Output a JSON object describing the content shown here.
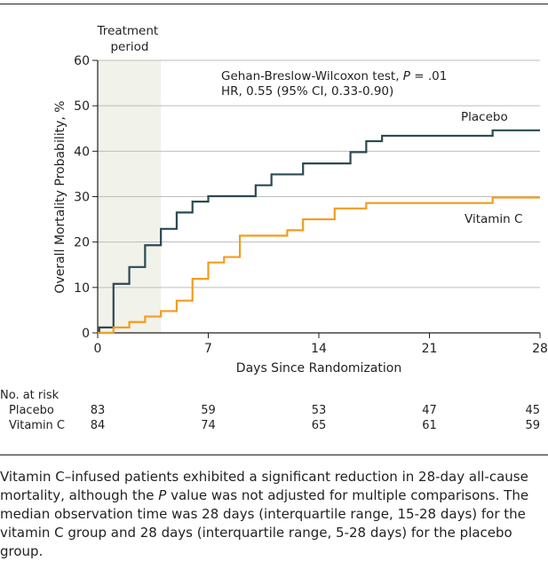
{
  "chart_data": {
    "type": "line",
    "step": true,
    "xlabel": "Days Since Randomization",
    "ylabel": "Overall Mortality Probability, %",
    "xlim": [
      0,
      28
    ],
    "ylim": [
      0,
      60
    ],
    "xticks": [
      0,
      7,
      14,
      21,
      28
    ],
    "yticks": [
      0,
      10,
      20,
      30,
      40,
      50,
      60
    ],
    "grid": "horizontal",
    "shaded_region": {
      "label": "Treatment period",
      "x": [
        0,
        4
      ]
    },
    "annotation": {
      "line1_prefix": "Gehan-Breslow-Wilcoxon test, ",
      "line1_p": "P",
      "line1_suffix": " = .01",
      "line2": "HR, 0.55 (95% CI, 0.33-0.90)"
    },
    "series": [
      {
        "name": "Placebo",
        "color": "#2a4a52",
        "points": [
          [
            0,
            0
          ],
          [
            0.1,
            1.2
          ],
          [
            1,
            10.8
          ],
          [
            2,
            14.5
          ],
          [
            3,
            19.3
          ],
          [
            4,
            22.9
          ],
          [
            5,
            26.5
          ],
          [
            6,
            28.9
          ],
          [
            7,
            30.1
          ],
          [
            10,
            32.5
          ],
          [
            11,
            34.9
          ],
          [
            13,
            37.3
          ],
          [
            16,
            39.8
          ],
          [
            17,
            42.2
          ],
          [
            18,
            43.4
          ],
          [
            25,
            44.6
          ],
          [
            28,
            44.6
          ]
        ]
      },
      {
        "name": "Vitamin C",
        "color": "#f39c1f",
        "points": [
          [
            0,
            0
          ],
          [
            1,
            1.2
          ],
          [
            2,
            2.4
          ],
          [
            3,
            3.6
          ],
          [
            4,
            4.8
          ],
          [
            5,
            7.1
          ],
          [
            6,
            11.9
          ],
          [
            7,
            15.5
          ],
          [
            8,
            16.7
          ],
          [
            9,
            21.4
          ],
          [
            12,
            22.6
          ],
          [
            13,
            25.0
          ],
          [
            15,
            27.4
          ],
          [
            17,
            28.6
          ],
          [
            25,
            29.8
          ],
          [
            28,
            29.8
          ]
        ]
      }
    ]
  },
  "risk_table": {
    "title": "No. at risk",
    "days": [
      0,
      7,
      14,
      21,
      28
    ],
    "rows": [
      {
        "label": "Placebo",
        "values": [
          "83",
          "59",
          "53",
          "47",
          "45"
        ]
      },
      {
        "label": "Vitamin C",
        "values": [
          "84",
          "74",
          "65",
          "61",
          "59"
        ]
      }
    ]
  },
  "caption": {
    "part1": "Vitamin C–infused patients exhibited a significant reduction in 28-day all-cause mortality, although the ",
    "p": "P",
    "part2": " value was not adjusted for multiple comparisons. The median observation time was 28 days (interquartile range, 15-28 days) for the vitamin C group and 28 days (interquartile range, 5-28 days) for the placebo group."
  }
}
